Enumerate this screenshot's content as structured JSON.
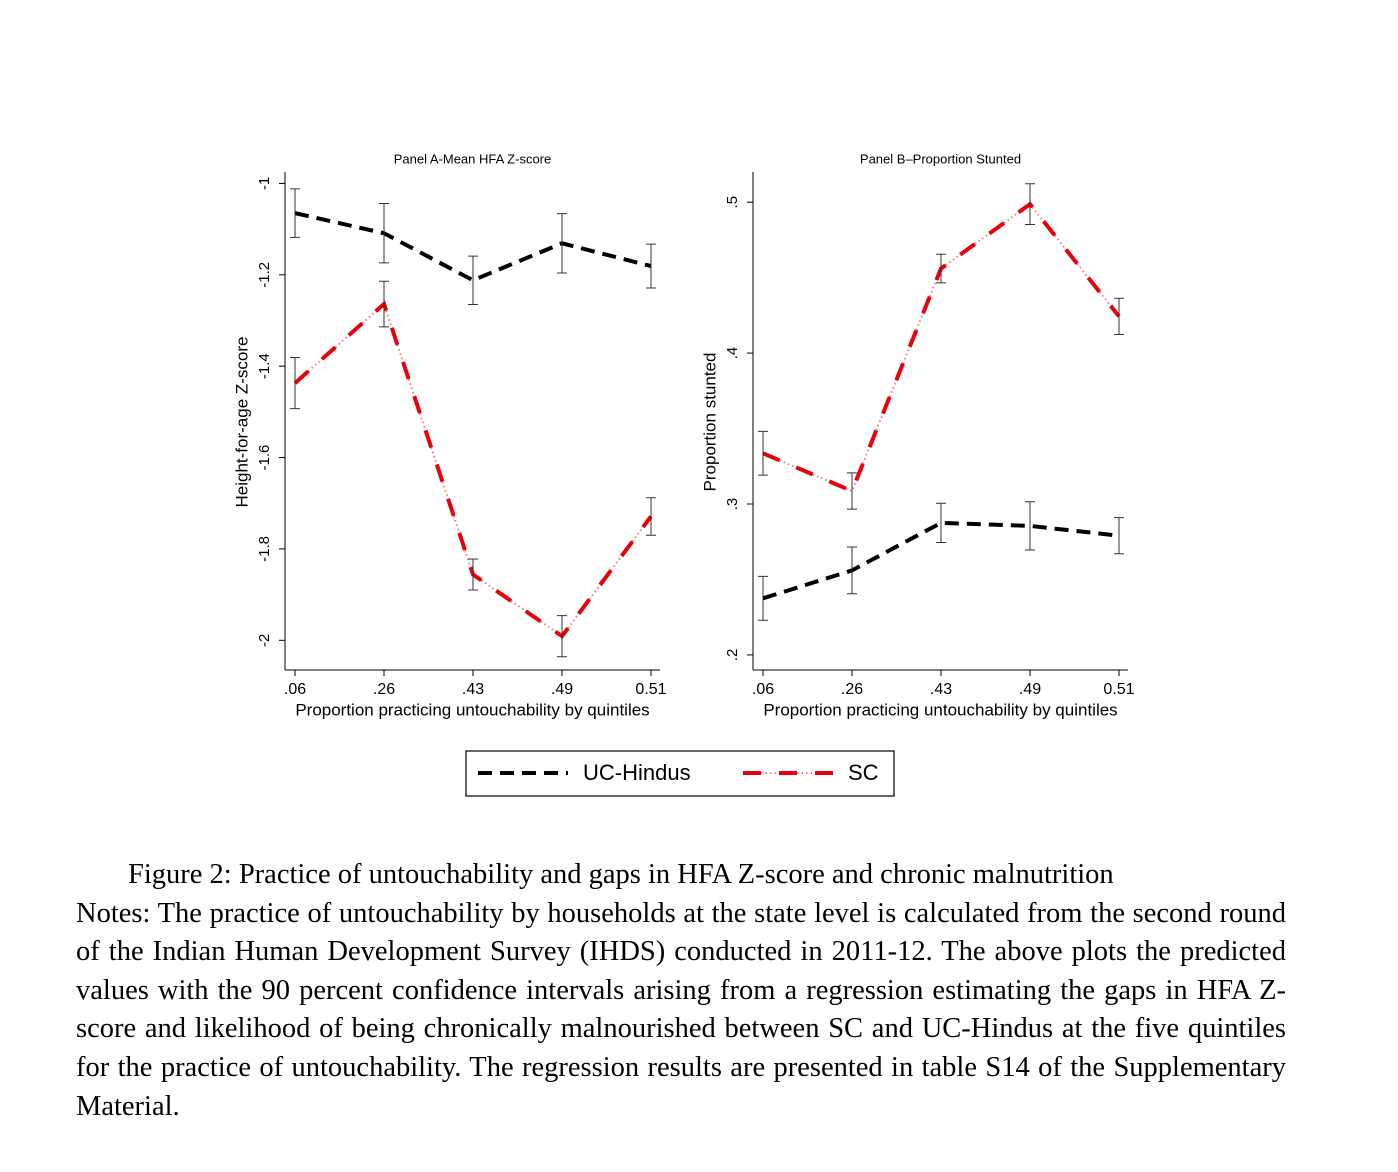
{
  "chart_data": [
    {
      "type": "line",
      "title": "Panel A-Mean HFA Z-score",
      "ylabel": "Height-for-age Z-score",
      "xlabel": "Proportion practicing untouchability by quintiles",
      "categories": [
        ".06",
        ".26",
        ".43",
        ".49",
        "0.51"
      ],
      "series": [
        {
          "name": "UC-Hindus",
          "color": "#000000",
          "values": [
            -1.065,
            -1.109,
            -1.212,
            -1.131,
            -1.181
          ],
          "errors": [
            0.053,
            0.065,
            0.053,
            0.065,
            0.048
          ]
        },
        {
          "name": "SC",
          "color": "#e8000b",
          "values": [
            -1.437,
            -1.264,
            -1.856,
            -1.991,
            -1.729
          ],
          "errors": [
            0.056,
            0.05,
            0.034,
            0.045,
            0.041
          ]
        }
      ],
      "ylim": [
        -2.065,
        -0.975
      ],
      "yticks": [
        -2,
        -1.8,
        -1.6,
        -1.4,
        -1.2,
        -1
      ]
    },
    {
      "type": "line",
      "title": "Panel B–Proportion Stunted",
      "ylabel": "Proportion stunted",
      "xlabel": "Proportion practicing untouchability by quintiles",
      "categories": [
        ".06",
        ".26",
        ".43",
        ".49",
        "0.51"
      ],
      "series": [
        {
          "name": "UC-Hindus",
          "color": "#000000",
          "values": [
            0.2375,
            0.256,
            0.2875,
            0.2855,
            0.279
          ],
          "errors": [
            0.0145,
            0.0155,
            0.013,
            0.016,
            0.012
          ]
        },
        {
          "name": "SC",
          "color": "#e8000b",
          "values": [
            0.3336,
            0.3086,
            0.456,
            0.4987,
            0.4243
          ],
          "errors": [
            0.0145,
            0.012,
            0.0095,
            0.0135,
            0.012
          ]
        }
      ],
      "ylim": [
        0.19,
        0.52
      ],
      "yticks": [
        {
          "value": 0.2,
          "label": ".2"
        },
        {
          "value": 0.3,
          "label": ".3"
        },
        {
          "value": 0.4,
          "label": ".4"
        },
        {
          "value": 0.5,
          "label": ".5"
        }
      ]
    }
  ],
  "caption": {
    "title": "Figure 2: Practice of untouchability and gaps in HFA Z-score and chronic malnutrition",
    "notes": "Notes: The practice of untouchability by households at the state level is calculated from the second round of the Indian Human Development Survey (IHDS) conducted in 2011-12. The above plots the predicted values with the 90 percent confidence intervals arising from a regression estimating the gaps in HFA Z-score and likelihood of being chronically malnourished between SC and UC-Hindus at the five quintiles for the practice of untouchability. The regression results are presented in table S14 of the Supplementary Material."
  }
}
